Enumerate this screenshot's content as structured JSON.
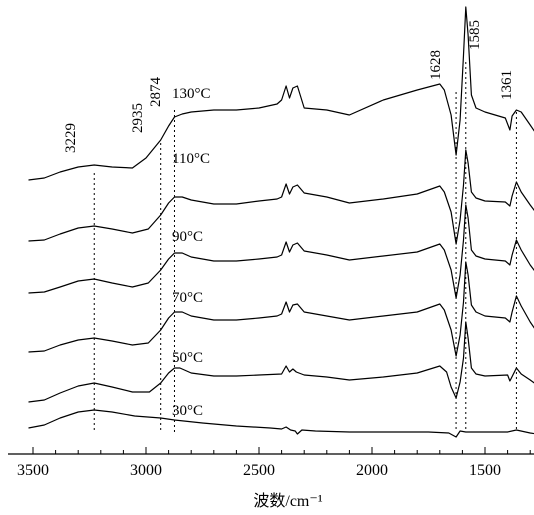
{
  "chart_data": {
    "type": "line",
    "title": "",
    "xlabel": "波数/cm⁻¹",
    "ylabel": "",
    "xlim": [
      3520,
      1270
    ],
    "x_reversed": true,
    "grid": false,
    "x_ticks": [
      3500,
      3000,
      2500,
      2000,
      1500
    ],
    "x_tick_labels": [
      "3500",
      "3000",
      "2500",
      "2000",
      "1500"
    ],
    "marked_peaks": [
      {
        "x": 3229,
        "label": "3229"
      },
      {
        "x": 2935,
        "label": "2935"
      },
      {
        "x": 2874,
        "label": "2874"
      },
      {
        "x": 1628,
        "label": "1628"
      },
      {
        "x": 1585,
        "label": "1585"
      },
      {
        "x": 1361,
        "label": "1361"
      }
    ],
    "series": [
      {
        "name": "30°C",
        "points": [
          [
            3520,
            428
          ],
          [
            3450,
            425
          ],
          [
            3380,
            418
          ],
          [
            3300,
            412
          ],
          [
            3229,
            410
          ],
          [
            3150,
            412
          ],
          [
            3050,
            416
          ],
          [
            2935,
            418
          ],
          [
            2874,
            420
          ],
          [
            2750,
            423
          ],
          [
            2600,
            426
          ],
          [
            2450,
            428
          ],
          [
            2400,
            429
          ],
          [
            2380,
            427
          ],
          [
            2360,
            430
          ],
          [
            2340,
            431
          ],
          [
            2330,
            434
          ],
          [
            2310,
            430
          ],
          [
            2250,
            431
          ],
          [
            2100,
            432
          ],
          [
            1900,
            432
          ],
          [
            1750,
            432
          ],
          [
            1660,
            433
          ],
          [
            1628,
            437
          ],
          [
            1610,
            431
          ],
          [
            1585,
            432
          ],
          [
            1560,
            432
          ],
          [
            1500,
            432
          ],
          [
            1400,
            432
          ],
          [
            1361,
            430
          ],
          [
            1300,
            433
          ],
          [
            1270,
            434
          ]
        ]
      },
      {
        "name": "50°C",
        "points": [
          [
            3520,
            402
          ],
          [
            3450,
            400
          ],
          [
            3380,
            393
          ],
          [
            3300,
            386
          ],
          [
            3229,
            383
          ],
          [
            3150,
            387
          ],
          [
            3060,
            392
          ],
          [
            2985,
            392
          ],
          [
            2935,
            383
          ],
          [
            2900,
            373
          ],
          [
            2874,
            368
          ],
          [
            2850,
            368
          ],
          [
            2800,
            373
          ],
          [
            2700,
            376
          ],
          [
            2600,
            376
          ],
          [
            2500,
            375
          ],
          [
            2400,
            374
          ],
          [
            2380,
            366
          ],
          [
            2365,
            372
          ],
          [
            2350,
            369
          ],
          [
            2335,
            372
          ],
          [
            2300,
            375
          ],
          [
            2200,
            377
          ],
          [
            2100,
            380
          ],
          [
            1950,
            377
          ],
          [
            1800,
            373
          ],
          [
            1700,
            366
          ],
          [
            1670,
            372
          ],
          [
            1650,
            387
          ],
          [
            1628,
            398
          ],
          [
            1610,
            382
          ],
          [
            1595,
            358
          ],
          [
            1585,
            322
          ],
          [
            1575,
            338
          ],
          [
            1560,
            368
          ],
          [
            1540,
            374
          ],
          [
            1500,
            376
          ],
          [
            1400,
            375
          ],
          [
            1390,
            381
          ],
          [
            1361,
            368
          ],
          [
            1340,
            374
          ],
          [
            1300,
            380
          ],
          [
            1270,
            385
          ]
        ]
      },
      {
        "name": "70°C",
        "points": [
          [
            3520,
            352
          ],
          [
            3450,
            351
          ],
          [
            3380,
            345
          ],
          [
            3300,
            340
          ],
          [
            3229,
            338
          ],
          [
            3150,
            341
          ],
          [
            3060,
            345
          ],
          [
            2990,
            343
          ],
          [
            2935,
            330
          ],
          [
            2900,
            318
          ],
          [
            2874,
            312
          ],
          [
            2840,
            312
          ],
          [
            2800,
            316
          ],
          [
            2700,
            320
          ],
          [
            2600,
            320
          ],
          [
            2500,
            318
          ],
          [
            2420,
            316
          ],
          [
            2400,
            314
          ],
          [
            2380,
            302
          ],
          [
            2365,
            312
          ],
          [
            2350,
            305
          ],
          [
            2330,
            304
          ],
          [
            2300,
            312
          ],
          [
            2200,
            316
          ],
          [
            2100,
            320
          ],
          [
            1950,
            316
          ],
          [
            1800,
            312
          ],
          [
            1700,
            304
          ],
          [
            1680,
            310
          ],
          [
            1650,
            330
          ],
          [
            1628,
            356
          ],
          [
            1610,
            335
          ],
          [
            1595,
            302
          ],
          [
            1585,
            262
          ],
          [
            1575,
            275
          ],
          [
            1560,
            305
          ],
          [
            1540,
            312
          ],
          [
            1500,
            316
          ],
          [
            1410,
            318
          ],
          [
            1390,
            322
          ],
          [
            1380,
            312
          ],
          [
            1361,
            296
          ],
          [
            1340,
            306
          ],
          [
            1300,
            322
          ],
          [
            1270,
            332
          ]
        ]
      },
      {
        "name": "90°C",
        "points": [
          [
            3520,
            293
          ],
          [
            3450,
            292
          ],
          [
            3380,
            287
          ],
          [
            3300,
            281
          ],
          [
            3229,
            279
          ],
          [
            3150,
            283
          ],
          [
            3060,
            287
          ],
          [
            2990,
            283
          ],
          [
            2935,
            270
          ],
          [
            2900,
            259
          ],
          [
            2874,
            253
          ],
          [
            2840,
            253
          ],
          [
            2800,
            257
          ],
          [
            2700,
            261
          ],
          [
            2600,
            261
          ],
          [
            2500,
            259
          ],
          [
            2420,
            257
          ],
          [
            2400,
            255
          ],
          [
            2380,
            242
          ],
          [
            2365,
            252
          ],
          [
            2350,
            245
          ],
          [
            2330,
            243
          ],
          [
            2300,
            251
          ],
          [
            2200,
            255
          ],
          [
            2100,
            260
          ],
          [
            1950,
            256
          ],
          [
            1800,
            252
          ],
          [
            1700,
            244
          ],
          [
            1680,
            250
          ],
          [
            1650,
            270
          ],
          [
            1628,
            298
          ],
          [
            1610,
            275
          ],
          [
            1595,
            240
          ],
          [
            1585,
            205
          ],
          [
            1575,
            218
          ],
          [
            1560,
            250
          ],
          [
            1540,
            256
          ],
          [
            1500,
            259
          ],
          [
            1410,
            261
          ],
          [
            1390,
            265
          ],
          [
            1380,
            255
          ],
          [
            1361,
            240
          ],
          [
            1340,
            250
          ],
          [
            1300,
            265
          ],
          [
            1270,
            274
          ]
        ]
      },
      {
        "name": "110°C",
        "points": [
          [
            3520,
            241
          ],
          [
            3450,
            240
          ],
          [
            3380,
            234
          ],
          [
            3300,
            228
          ],
          [
            3229,
            226
          ],
          [
            3150,
            229
          ],
          [
            3060,
            233
          ],
          [
            2990,
            229
          ],
          [
            2935,
            215
          ],
          [
            2900,
            203
          ],
          [
            2874,
            197
          ],
          [
            2840,
            197
          ],
          [
            2800,
            200
          ],
          [
            2700,
            204
          ],
          [
            2600,
            204
          ],
          [
            2500,
            201
          ],
          [
            2420,
            199
          ],
          [
            2400,
            197
          ],
          [
            2380,
            184
          ],
          [
            2365,
            194
          ],
          [
            2350,
            187
          ],
          [
            2330,
            185
          ],
          [
            2300,
            193
          ],
          [
            2200,
            197
          ],
          [
            2100,
            203
          ],
          [
            1950,
            199
          ],
          [
            1800,
            194
          ],
          [
            1700,
            186
          ],
          [
            1680,
            192
          ],
          [
            1650,
            212
          ],
          [
            1628,
            244
          ],
          [
            1610,
            220
          ],
          [
            1595,
            185
          ],
          [
            1585,
            150
          ],
          [
            1575,
            163
          ],
          [
            1560,
            192
          ],
          [
            1540,
            198
          ],
          [
            1500,
            201
          ],
          [
            1410,
            202
          ],
          [
            1390,
            206
          ],
          [
            1380,
            196
          ],
          [
            1361,
            182
          ],
          [
            1340,
            192
          ],
          [
            1300,
            205
          ],
          [
            1270,
            214
          ]
        ]
      },
      {
        "name": "130°C",
        "points": [
          [
            3520,
            180
          ],
          [
            3450,
            178
          ],
          [
            3380,
            172
          ],
          [
            3300,
            167
          ],
          [
            3229,
            165
          ],
          [
            3150,
            167
          ],
          [
            3060,
            168
          ],
          [
            3000,
            158
          ],
          [
            2935,
            140
          ],
          [
            2900,
            126
          ],
          [
            2874,
            117
          ],
          [
            2840,
            114
          ],
          [
            2800,
            112
          ],
          [
            2700,
            110
          ],
          [
            2600,
            110
          ],
          [
            2500,
            108
          ],
          [
            2420,
            104
          ],
          [
            2400,
            100
          ],
          [
            2380,
            86
          ],
          [
            2365,
            98
          ],
          [
            2350,
            88
          ],
          [
            2330,
            86
          ],
          [
            2300,
            108
          ],
          [
            2200,
            110
          ],
          [
            2100,
            115
          ],
          [
            1950,
            100
          ],
          [
            1800,
            90
          ],
          [
            1700,
            84
          ],
          [
            1680,
            90
          ],
          [
            1650,
            115
          ],
          [
            1628,
            155
          ],
          [
            1610,
            120
          ],
          [
            1595,
            55
          ],
          [
            1585,
            7
          ],
          [
            1575,
            35
          ],
          [
            1560,
            95
          ],
          [
            1540,
            108
          ],
          [
            1500,
            112
          ],
          [
            1410,
            118
          ],
          [
            1390,
            130
          ],
          [
            1380,
            116
          ],
          [
            1361,
            110
          ],
          [
            1340,
            112
          ],
          [
            1300,
            125
          ],
          [
            1270,
            135
          ]
        ]
      }
    ]
  }
}
